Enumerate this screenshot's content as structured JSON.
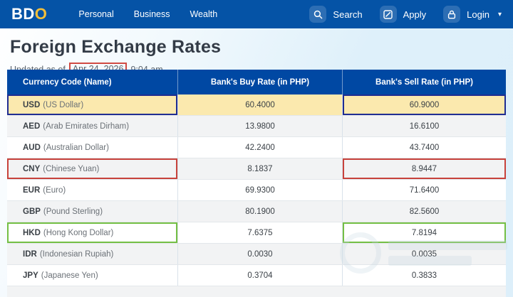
{
  "nav": {
    "logo": {
      "bd": "BD",
      "o": "O"
    },
    "links": [
      {
        "label": "Personal"
      },
      {
        "label": "Business"
      },
      {
        "label": "Wealth"
      }
    ],
    "actions": {
      "search_label": "Search",
      "apply_label": "Apply",
      "login_label": "Login",
      "login_caret": "▾"
    }
  },
  "page": {
    "title": "Foreign Exchange Rates",
    "updated_prefix": "Updated as of",
    "updated_date": "Apr 24, 2026",
    "updated_time": "9:04 am"
  },
  "table": {
    "headers": [
      "Currency Code (Name)",
      "Bank's Buy Rate (in PHP)",
      "Bank's Sell Rate (in PHP)"
    ],
    "rows": [
      {
        "code": "USD",
        "name": "(US Dollar)",
        "buy": "60.4000",
        "sell": "60.9000",
        "row_bg": "yellow",
        "box": "navy"
      },
      {
        "code": "AED",
        "name": "(Arab Emirates Dirham)",
        "buy": "13.9800",
        "sell": "16.6100",
        "row_bg": "gray",
        "box": null
      },
      {
        "code": "AUD",
        "name": "(Australian Dollar)",
        "buy": "42.2400",
        "sell": "43.7400",
        "row_bg": "white",
        "box": null
      },
      {
        "code": "CNY",
        "name": "(Chinese Yuan)",
        "buy": "8.1837",
        "sell": "8.9447",
        "row_bg": "gray",
        "box": "red"
      },
      {
        "code": "EUR",
        "name": "(Euro)",
        "buy": "69.9300",
        "sell": "71.6400",
        "row_bg": "white",
        "box": null
      },
      {
        "code": "GBP",
        "name": "(Pound Sterling)",
        "buy": "80.1900",
        "sell": "82.5600",
        "row_bg": "gray",
        "box": null
      },
      {
        "code": "HKD",
        "name": "(Hong Kong Dollar)",
        "buy": "7.6375",
        "sell": "7.8194",
        "row_bg": "white",
        "box": "green"
      },
      {
        "code": "IDR",
        "name": "(Indonesian Rupiah)",
        "buy": "0.0030",
        "sell": "0.0035",
        "row_bg": "gray",
        "box": null
      },
      {
        "code": "JPY",
        "name": "(Japanese Yen)",
        "buy": "0.3704",
        "sell": "0.3833",
        "row_bg": "white",
        "box": null
      }
    ]
  },
  "colors": {
    "nav_blue": "#0553A6",
    "header_blue": "#0048A3",
    "gold": "#F3BE39",
    "highlight_yellow": "#FBE9AE",
    "row_gray": "#F2F3F4",
    "navy_box": "#1F2D91",
    "red_box": "#C8423B",
    "green_box": "#74BF44",
    "date_box_red": "#D04A43"
  }
}
